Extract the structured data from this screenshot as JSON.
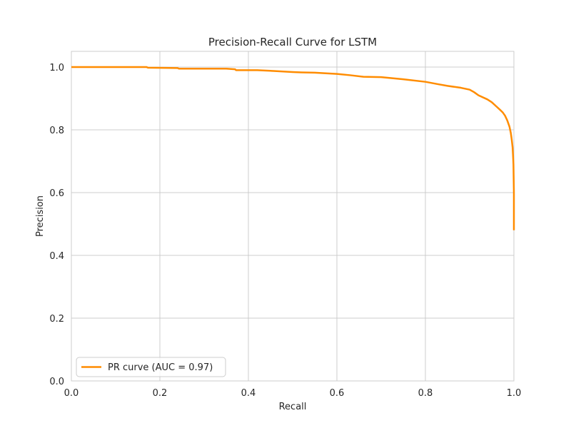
{
  "chart_data": {
    "type": "line",
    "title": "Precision-Recall Curve for LSTM",
    "xlabel": "Recall",
    "ylabel": "Precision",
    "xlim": [
      0,
      1
    ],
    "ylim": [
      0,
      1.05
    ],
    "xticks": [
      "0.0",
      "0.2",
      "0.4",
      "0.6",
      "0.8",
      "1.0"
    ],
    "yticks": [
      "0.0",
      "0.2",
      "0.4",
      "0.6",
      "0.8",
      "1.0"
    ],
    "grid": true,
    "legend_position": "lower-left",
    "series": [
      {
        "name": "PR curve (AUC = 0.97)",
        "color": "#ff8c00",
        "x": [
          0.0,
          0.17,
          0.173,
          0.24,
          0.243,
          0.35,
          0.37,
          0.372,
          0.42,
          0.45,
          0.5,
          0.52,
          0.55,
          0.6,
          0.63,
          0.66,
          0.7,
          0.75,
          0.8,
          0.83,
          0.85,
          0.88,
          0.9,
          0.91,
          0.92,
          0.94,
          0.95,
          0.96,
          0.97,
          0.975,
          0.98,
          0.985,
          0.99,
          0.993,
          0.995,
          0.997,
          0.998,
          0.999,
          1.0,
          1.0
        ],
        "y": [
          1.0,
          1.0,
          0.998,
          0.997,
          0.995,
          0.995,
          0.993,
          0.99,
          0.99,
          0.988,
          0.984,
          0.983,
          0.982,
          0.978,
          0.974,
          0.969,
          0.968,
          0.961,
          0.953,
          0.945,
          0.94,
          0.934,
          0.928,
          0.92,
          0.91,
          0.897,
          0.888,
          0.875,
          0.862,
          0.855,
          0.845,
          0.83,
          0.81,
          0.79,
          0.77,
          0.745,
          0.72,
          0.69,
          0.6,
          0.48
        ]
      }
    ]
  }
}
